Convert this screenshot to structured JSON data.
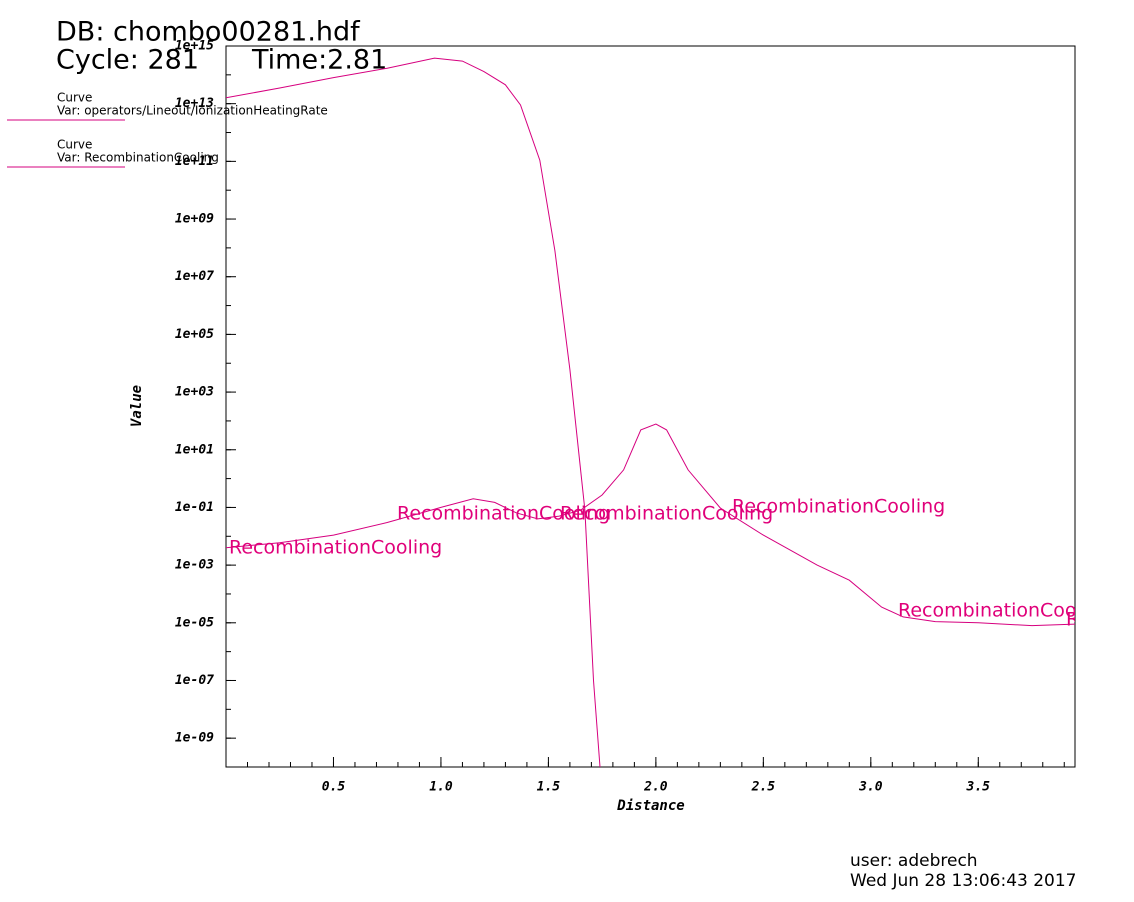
{
  "chart_data": {
    "type": "line",
    "header": {
      "db": "DB: chombo00281.hdf",
      "cycle": "Cycle: 281",
      "time": "Time:2.81"
    },
    "footer": {
      "user": "user: adebrech",
      "date": "Wed Jun 28 13:06:43 2017"
    },
    "xlabel": "Distance",
    "ylabel": "Value",
    "log_y": true,
    "xlim": [
      0,
      3.95
    ],
    "ylim": [
      1e-10,
      1000000000000000.0
    ],
    "xticks": [
      0.5,
      {
        "value": 1,
        "label": "1.0"
      },
      1.5,
      {
        "value": 2,
        "label": "2.0"
      },
      2.5,
      {
        "value": 3,
        "label": "3.0"
      },
      3.5
    ],
    "yticks": [
      {
        "value": 1e-09,
        "label": "1e-09"
      },
      {
        "value": 1e-07,
        "label": "1e-07"
      },
      {
        "value": 1e-05,
        "label": "1e-05"
      },
      {
        "value": 0.001,
        "label": "1e-03"
      },
      {
        "value": 0.1,
        "label": "1e-01"
      },
      {
        "value": 10.0,
        "label": "1e+01"
      },
      {
        "value": 1000.0,
        "label": "1e+03"
      },
      {
        "value": 100000.0,
        "label": "1e+05"
      },
      {
        "value": 10000000.0,
        "label": "1e+07"
      },
      {
        "value": 1000000000.0,
        "label": "1e+09"
      },
      {
        "value": 100000000000.0,
        "label": "1e+11"
      },
      {
        "value": 10000000000000.0,
        "label": "1e+13"
      },
      {
        "value": 1000000000000000.0,
        "label": "1e+15"
      }
    ],
    "series": [
      {
        "label": "Curve",
        "name": "Var: operators/Lineout/IonizationHeatingRate",
        "color": "#d6007f",
        "x": [
          0,
          0.25,
          0.5,
          0.75,
          0.97,
          1.1,
          1.2,
          1.3,
          1.37,
          1.46,
          1.53,
          1.6,
          1.67,
          1.71,
          1.74,
          1.75
        ],
        "values": [
          16000000000000.0,
          35000000000000.0,
          80000000000000.0,
          170000000000000.0,
          380000000000000.0,
          300000000000000.0,
          130000000000000.0,
          45000000000000.0,
          9000000000000.0,
          110000000000.0,
          80000000.0,
          6000.0,
          0.08,
          1e-07,
          1e-10,
          1e-11
        ]
      },
      {
        "label": "Curve",
        "name": "Var: RecombinationCooling",
        "color": "#d6007f",
        "x": [
          0,
          0.25,
          0.5,
          0.75,
          1.0,
          1.15,
          1.25,
          1.35,
          1.45,
          1.55,
          1.65,
          1.75,
          1.85,
          1.93,
          2.0,
          2.05,
          2.15,
          2.3,
          2.5,
          2.75,
          2.9,
          3.05,
          3.15,
          3.3,
          3.5,
          3.75,
          3.95
        ],
        "values": [
          0.004,
          0.006,
          0.011,
          0.03,
          0.1,
          0.2,
          0.15,
          0.065,
          0.04,
          0.05,
          0.08,
          0.27,
          2,
          49,
          78,
          49,
          2,
          0.095,
          0.011,
          0.001,
          0.0003,
          3.5e-05,
          1.6e-05,
          1.1e-05,
          1e-05,
          8e-06,
          9e-06
        ]
      }
    ],
    "annotations": [
      "RecombinationCooling",
      "RecombinationCooling",
      "RecombinationCooling",
      "RecombinationCooling",
      "RecombinationCooling",
      "RecombinationCooling"
    ]
  }
}
